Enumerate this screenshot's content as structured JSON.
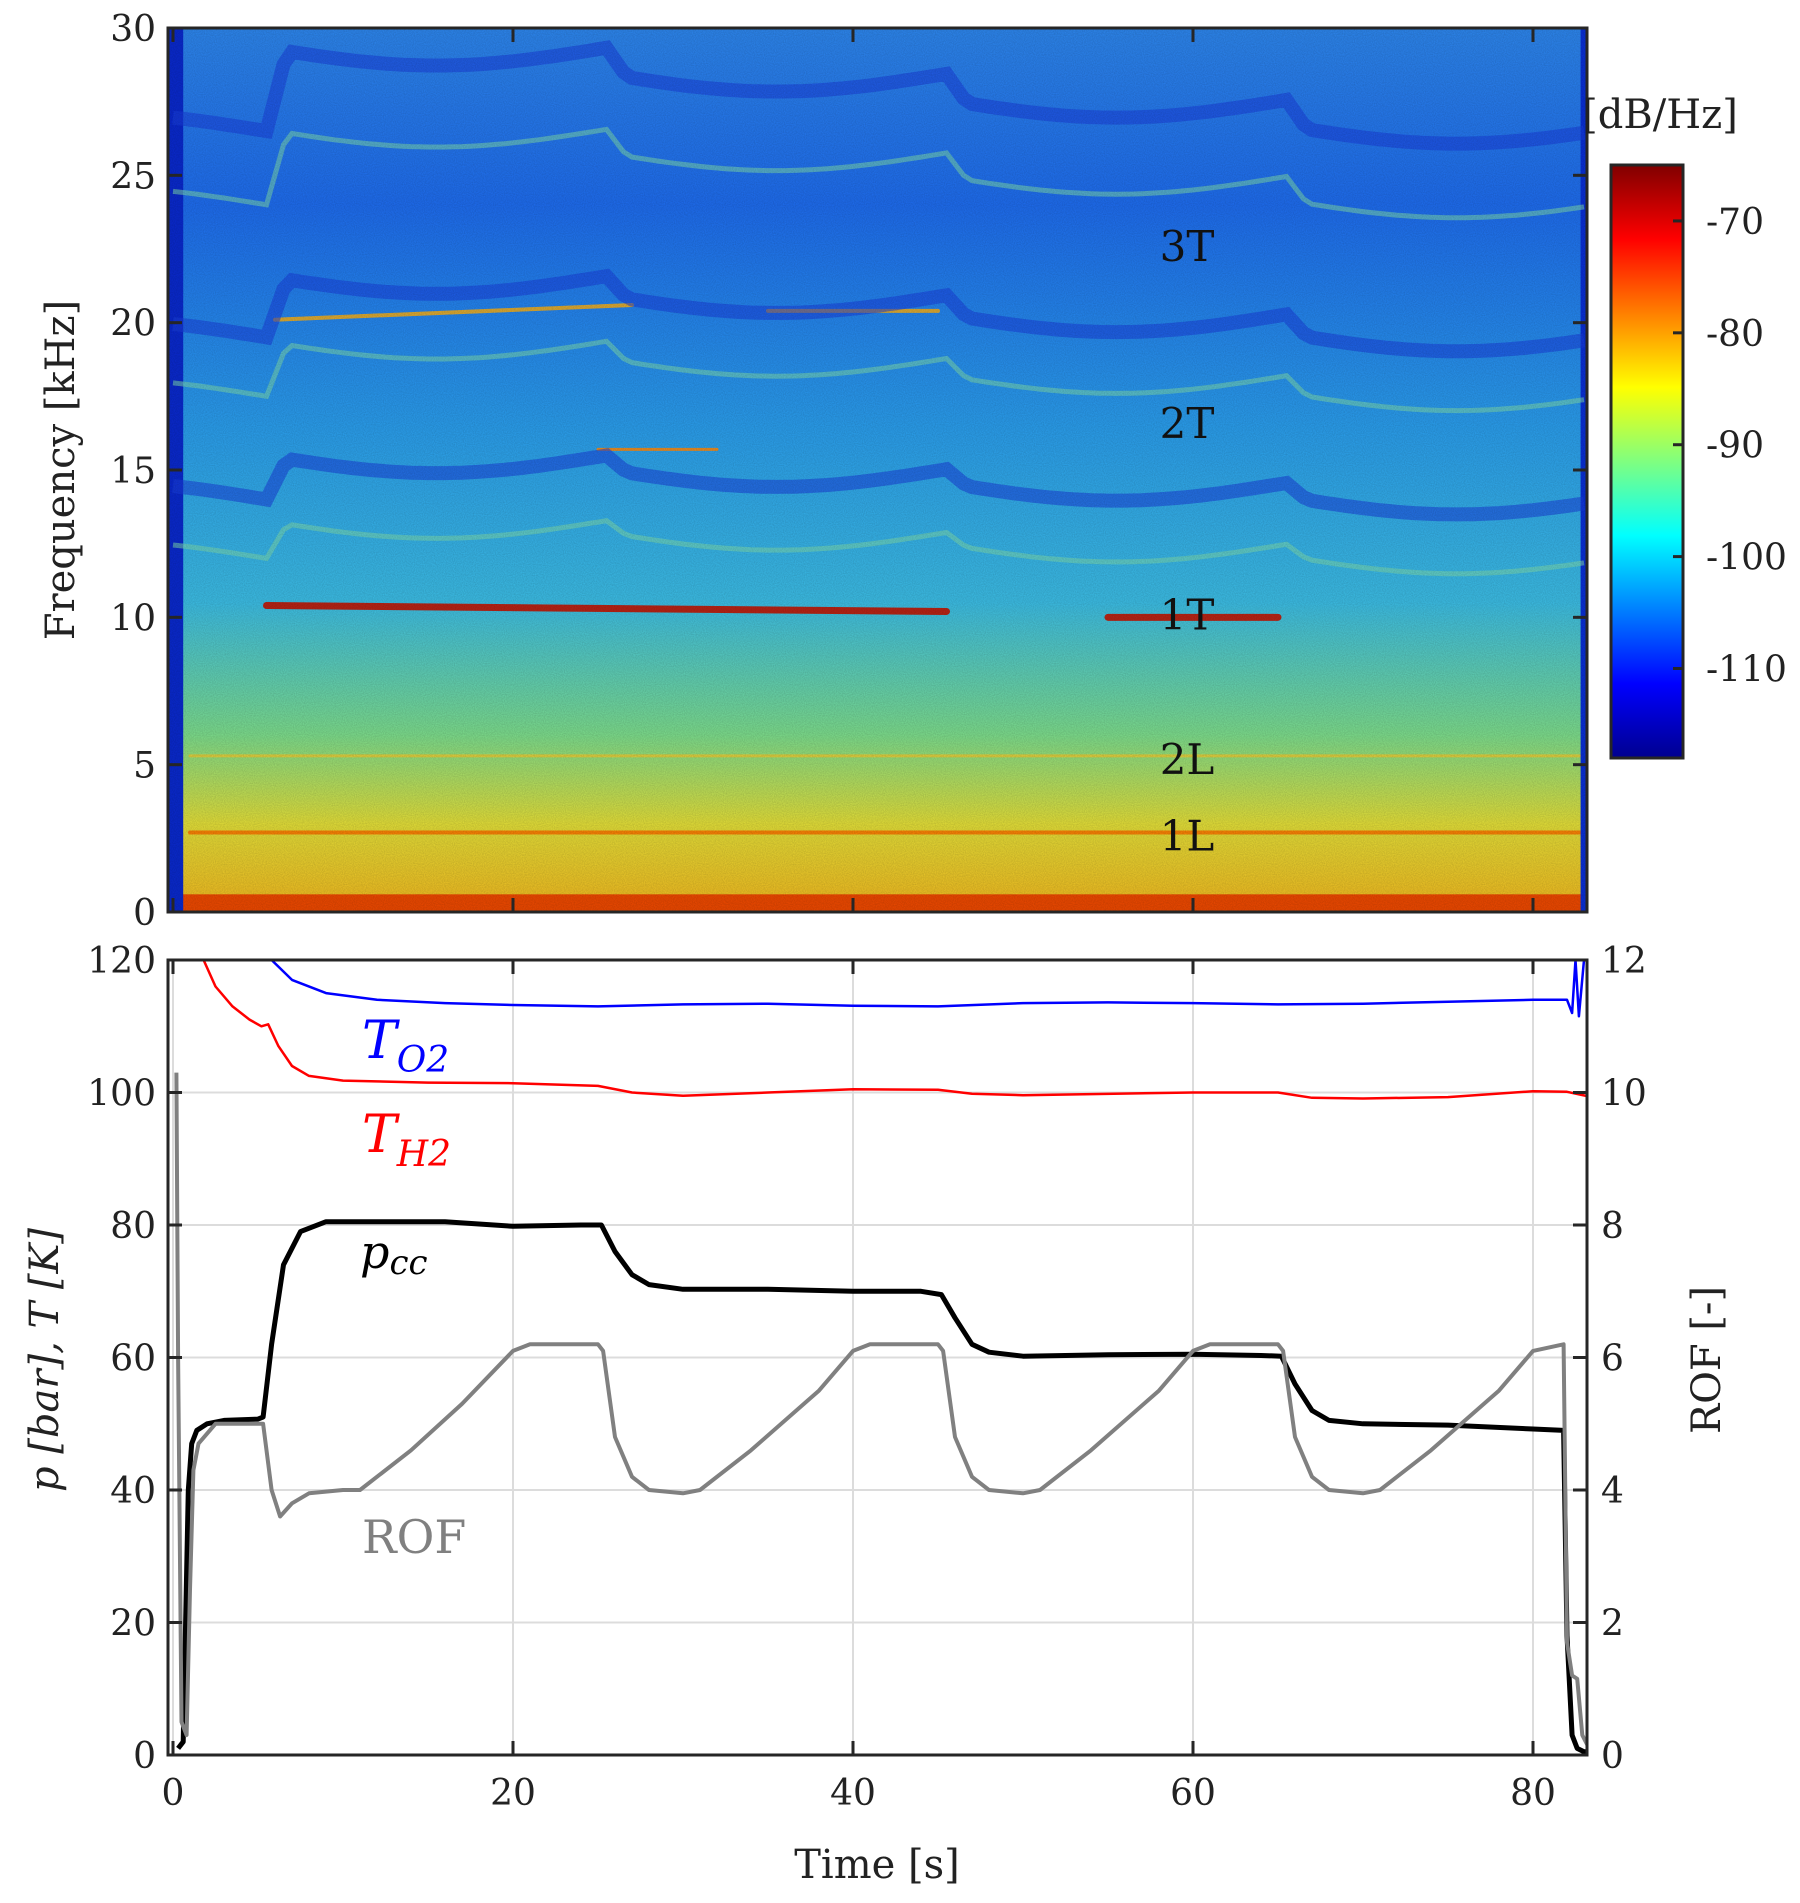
{
  "chart_data": [
    {
      "type": "heatmap",
      "title": "",
      "xlabel": "Time [s]",
      "ylabel": "Frequency [kHz]",
      "xlim": [
        0,
        83.3
      ],
      "ylim": [
        0,
        30
      ],
      "xticks": [
        "0",
        "20",
        "40",
        "60",
        "80"
      ],
      "yticks": [
        "0",
        "5",
        "10",
        "15",
        "20",
        "25",
        "30"
      ],
      "colorbar": {
        "label": "[dB/Hz]",
        "range": [
          -118,
          -65
        ],
        "ticks": [
          "-70",
          "-80",
          "-90",
          "-100",
          "-110"
        ],
        "colormap": "jet"
      },
      "annotations": [
        {
          "text": "3T",
          "x": 52,
          "y": 22.6
        },
        {
          "text": "2T",
          "x": 52,
          "y": 16.6
        },
        {
          "text": "1T",
          "x": 52,
          "y": 10.1
        },
        {
          "text": "2L",
          "x": 52,
          "y": 5.2
        },
        {
          "text": "1L",
          "x": 52,
          "y": 2.6
        }
      ],
      "bands": [
        {
          "name": "1T",
          "segments": [
            [
              5.5,
              10.4,
              45.5,
              10.2
            ],
            [
              55,
              10.0,
              65,
              10.0
            ]
          ]
        },
        {
          "name": "1L",
          "segments": [
            [
              1,
              2.7,
              83,
              2.7
            ]
          ]
        },
        {
          "name": "2L",
          "segments": [
            [
              1,
              5.3,
              83,
              5.3
            ]
          ]
        },
        {
          "name": "2T-line",
          "segments": [
            [
              25,
              15.7,
              32,
              15.7
            ]
          ]
        },
        {
          "name": "20kHz-line",
          "segments": [
            [
              6,
              20.1,
              27,
              20.6
            ],
            [
              35,
              20.4,
              45,
              20.4
            ]
          ]
        }
      ]
    },
    {
      "type": "line",
      "xlabel": "Time [s]",
      "ylabel_left": "p [bar], T [K]",
      "ylabel_right": "ROF [-]",
      "xlim": [
        0,
        83.3
      ],
      "ylim_left": [
        0,
        120
      ],
      "ylim_right": [
        0,
        12
      ],
      "grid": true,
      "xticks": [
        "0",
        "20",
        "40",
        "60",
        "80"
      ],
      "yticks_left": [
        "0",
        "20",
        "40",
        "60",
        "80",
        "100",
        "120"
      ],
      "yticks_right": [
        "0",
        "2",
        "4",
        "6",
        "8",
        "10",
        "12"
      ],
      "series": [
        {
          "name": "T_O2",
          "label_main": "T",
          "label_sub": "O2",
          "color": "#0000ff",
          "axis": "left",
          "x": [
            5.8,
            7,
            9,
            12,
            16,
            20,
            25,
            30,
            35,
            40,
            45,
            50,
            55,
            60,
            65,
            70,
            75,
            80,
            82,
            82.3,
            82.5,
            82.7,
            83
          ],
          "y": [
            120,
            117,
            115,
            114,
            113.5,
            113.2,
            113,
            113.3,
            113.4,
            113.1,
            113,
            113.5,
            113.6,
            113.5,
            113.3,
            113.4,
            113.7,
            114,
            114,
            112,
            120,
            111.5,
            120
          ]
        },
        {
          "name": "T_H2",
          "label_main": "T",
          "label_sub": "H2",
          "color": "#ff0000",
          "axis": "left",
          "x": [
            1.8,
            2.5,
            3.5,
            4.5,
            5.2,
            5.6,
            6.2,
            7,
            8,
            10,
            15,
            20,
            25,
            27,
            30,
            35,
            40,
            45,
            47,
            50,
            60,
            65,
            67,
            70,
            75,
            80,
            82,
            83.3
          ],
          "y": [
            120,
            116,
            113,
            111,
            110,
            110.3,
            107,
            104,
            102.5,
            101.8,
            101.5,
            101.4,
            101,
            100,
            99.5,
            100,
            100.5,
            100.4,
            99.8,
            99.6,
            100,
            100,
            99.2,
            99.1,
            99.3,
            100.2,
            100.1,
            99.4
          ]
        },
        {
          "name": "p_cc",
          "label_main": "p",
          "label_sub": "cc",
          "color": "#000000",
          "axis": "left",
          "x": [
            0.3,
            0.6,
            0.9,
            1.1,
            1.4,
            2,
            3,
            5,
            5.3,
            5.8,
            6.5,
            7.5,
            9,
            12,
            16,
            20,
            24,
            25.2,
            26,
            27,
            28,
            30,
            35,
            40,
            44,
            45.2,
            46,
            47,
            48,
            50,
            55,
            60,
            64,
            65.2,
            66,
            67,
            68,
            70,
            75,
            80,
            81.8,
            82,
            82.3,
            82.6,
            83,
            83.3
          ],
          "y": [
            1,
            2,
            40,
            47,
            49,
            50,
            50.5,
            50.7,
            51,
            62,
            74,
            79,
            80.5,
            80.5,
            80.5,
            79.8,
            80,
            80,
            76,
            72.5,
            71,
            70.3,
            70.3,
            70,
            70,
            69.5,
            66,
            62,
            60.8,
            60.2,
            60.4,
            60.5,
            60.3,
            60.2,
            56,
            52,
            50.5,
            50,
            49.8,
            49.2,
            49,
            18,
            3,
            1,
            0.5,
            0.5
          ]
        },
        {
          "name": "ROF",
          "label_main": "ROF",
          "color": "#808080",
          "axis": "right",
          "x": [
            0.2,
            0.3,
            0.5,
            0.8,
            1.0,
            1.2,
            1.5,
            2.5,
            5,
            5.3,
            5.8,
            6.3,
            7,
            8,
            10,
            11,
            14,
            17,
            20,
            21,
            25,
            25.3,
            26,
            27,
            28,
            30,
            31,
            34,
            38,
            40,
            41,
            45,
            45.3,
            46,
            47,
            48,
            50,
            51,
            54,
            58,
            60,
            61,
            65,
            65.3,
            66,
            67,
            68,
            70,
            71,
            74,
            78,
            80,
            81.8,
            82,
            82.3,
            82.6,
            82.9,
            83.3
          ],
          "y": [
            10.3,
            6,
            0.5,
            0.3,
            2.5,
            4.3,
            4.7,
            5.0,
            5.0,
            5.0,
            4.0,
            3.6,
            3.8,
            3.95,
            4.0,
            4.0,
            4.6,
            5.3,
            6.1,
            6.2,
            6.2,
            6.1,
            4.8,
            4.2,
            4.0,
            3.95,
            4.0,
            4.6,
            5.5,
            6.1,
            6.2,
            6.2,
            6.1,
            4.8,
            4.2,
            4.0,
            3.95,
            4.0,
            4.6,
            5.5,
            6.1,
            6.2,
            6.2,
            6.1,
            4.8,
            4.2,
            4.0,
            3.95,
            4.0,
            4.6,
            5.5,
            6.1,
            6.2,
            1.7,
            1.2,
            1.15,
            0.3,
            0.1
          ]
        }
      ]
    }
  ]
}
